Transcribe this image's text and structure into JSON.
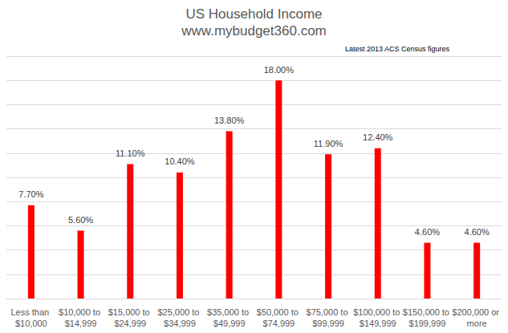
{
  "chart_data": {
    "type": "bar",
    "title": "US Household Income",
    "subtitle": "www.mybudget360.com",
    "annotation": "Latest 2013 ACS Census figures",
    "categories": [
      "Less than $10,000",
      "$10,000 to $14,999",
      "$15,000 to $24,999",
      "$25,000 to $34,999",
      "$35,000 to $49,999",
      "$50,000 to $74,999",
      "$75,000 to $99,999",
      "$100,000 to $149,999",
      "$150,000 to $199,999",
      "$200,000 or more"
    ],
    "values": [
      7.7,
      5.6,
      11.1,
      10.4,
      13.8,
      18.0,
      11.9,
      12.4,
      4.6,
      4.6
    ],
    "value_labels": [
      "7.70%",
      "5.60%",
      "11.10%",
      "10.40%",
      "13.80%",
      "18.00%",
      "11.90%",
      "12.40%",
      "4.60%",
      "4.60%"
    ],
    "color": "#ff0000",
    "ylim": [
      0,
      20
    ],
    "yticks": [
      0,
      2,
      4,
      6,
      8,
      10,
      12,
      14,
      16,
      18,
      20
    ],
    "grid": true,
    "data_labels": true,
    "tick_labels": "x"
  }
}
